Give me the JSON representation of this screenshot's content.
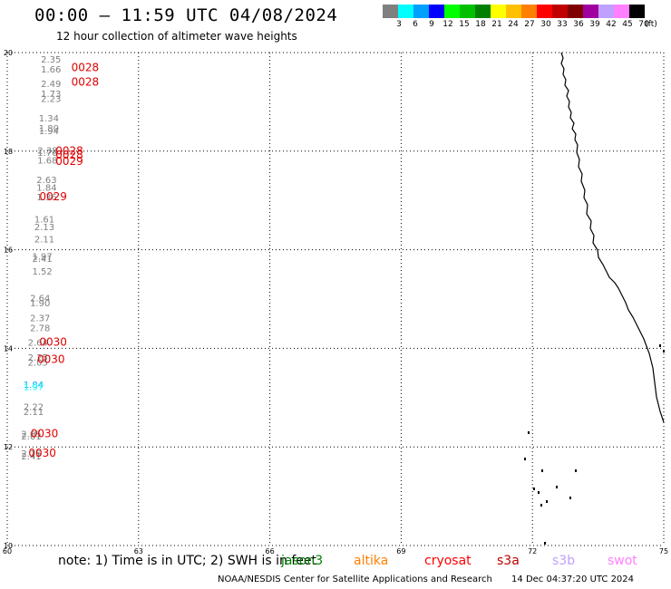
{
  "header": {
    "title": "00:00 – 11:59 UTC 04/08/2024",
    "subtitle": "12 hour collection of altimeter wave heights"
  },
  "legend": {
    "unit": "(ft)",
    "bins": [
      {
        "label": "3",
        "color": "#808080"
      },
      {
        "label": "6",
        "color": "#00ffff"
      },
      {
        "label": "9",
        "color": "#00a0ff"
      },
      {
        "label": "12",
        "color": "#0000ff"
      },
      {
        "label": "15",
        "color": "#00ff00"
      },
      {
        "label": "18",
        "color": "#00c000"
      },
      {
        "label": "21",
        "color": "#008000"
      },
      {
        "label": "24",
        "color": "#ffff00"
      },
      {
        "label": "27",
        "color": "#ffc000"
      },
      {
        "label": "30",
        "color": "#ff8000"
      },
      {
        "label": "33",
        "color": "#ff0000"
      },
      {
        "label": "36",
        "color": "#c00000"
      },
      {
        "label": "39",
        "color": "#800000"
      },
      {
        "label": "42",
        "color": "#a000a0"
      },
      {
        "label": "45",
        "color": "#c0a0ff"
      },
      {
        "label": "70",
        "color": "#ff80ff"
      },
      {
        "label": "",
        "color": "#000000"
      }
    ]
  },
  "map": {
    "lon_ticks": [
      "60",
      "63",
      "66",
      "69",
      "72",
      "75"
    ],
    "lat_ticks": [
      "20",
      "18",
      "16",
      "14",
      "12",
      "10"
    ],
    "lon_range": [
      60,
      75
    ],
    "lat_range": [
      10,
      20
    ],
    "grid": "dotted",
    "wave_heights": [
      {
        "lat": 19.8,
        "lon": 61.0,
        "value": "2.35",
        "color": "#808080"
      },
      {
        "lat": 19.6,
        "lon": 61.0,
        "value": "1.66",
        "color": "#808080"
      },
      {
        "lat": 19.3,
        "lon": 61.0,
        "value": "2.49",
        "color": "#808080"
      },
      {
        "lat": 19.1,
        "lon": 61.0,
        "value": "1.73",
        "color": "#808080"
      },
      {
        "lat": 19.0,
        "lon": 61.0,
        "value": "2.23",
        "color": "#808080"
      },
      {
        "lat": 18.6,
        "lon": 60.95,
        "value": "1.34",
        "color": "#808080"
      },
      {
        "lat": 18.4,
        "lon": 60.95,
        "value": "1.80",
        "color": "#808080"
      },
      {
        "lat": 18.35,
        "lon": 60.95,
        "value": "1.94",
        "color": "#808080"
      },
      {
        "lat": 17.95,
        "lon": 60.92,
        "value": "2.38",
        "color": "#808080"
      },
      {
        "lat": 17.9,
        "lon": 60.92,
        "value": "1.76",
        "color": "#808080"
      },
      {
        "lat": 17.75,
        "lon": 60.92,
        "value": "1.68",
        "color": "#808080"
      },
      {
        "lat": 17.35,
        "lon": 60.9,
        "value": "2.63",
        "color": "#808080"
      },
      {
        "lat": 17.2,
        "lon": 60.9,
        "value": "1.84",
        "color": "#808080"
      },
      {
        "lat": 17.0,
        "lon": 60.9,
        "value": "1.36",
        "color": "#808080"
      },
      {
        "lat": 16.55,
        "lon": 60.85,
        "value": "1.61",
        "color": "#808080"
      },
      {
        "lat": 16.4,
        "lon": 60.85,
        "value": "2.13",
        "color": "#808080"
      },
      {
        "lat": 16.15,
        "lon": 60.85,
        "value": "2.11",
        "color": "#808080"
      },
      {
        "lat": 15.8,
        "lon": 60.8,
        "value": "1.97",
        "color": "#808080"
      },
      {
        "lat": 15.75,
        "lon": 60.8,
        "value": "2.41",
        "color": "#808080"
      },
      {
        "lat": 15.5,
        "lon": 60.8,
        "value": "1.52",
        "color": "#808080"
      },
      {
        "lat": 14.95,
        "lon": 60.75,
        "value": "2.64",
        "color": "#808080"
      },
      {
        "lat": 14.85,
        "lon": 60.75,
        "value": "1.90",
        "color": "#808080"
      },
      {
        "lat": 14.55,
        "lon": 60.75,
        "value": "2.37",
        "color": "#808080"
      },
      {
        "lat": 14.35,
        "lon": 60.75,
        "value": "2.78",
        "color": "#808080"
      },
      {
        "lat": 14.05,
        "lon": 60.7,
        "value": "2.64",
        "color": "#808080"
      },
      {
        "lat": 13.75,
        "lon": 60.7,
        "value": "2.25",
        "color": "#808080"
      },
      {
        "lat": 13.65,
        "lon": 60.7,
        "value": "2.05",
        "color": "#808080"
      },
      {
        "lat": 13.2,
        "lon": 60.6,
        "value": "1.84",
        "color": "#00a0ff"
      },
      {
        "lat": 13.15,
        "lon": 60.6,
        "value": "1.97",
        "color": "#00ffff"
      },
      {
        "lat": 12.75,
        "lon": 60.6,
        "value": "2.22",
        "color": "#808080"
      },
      {
        "lat": 12.65,
        "lon": 60.6,
        "value": "2.11",
        "color": "#808080"
      },
      {
        "lat": 12.2,
        "lon": 60.55,
        "value": "2.05",
        "color": "#808080"
      },
      {
        "lat": 12.15,
        "lon": 60.55,
        "value": "2.01",
        "color": "#808080"
      },
      {
        "lat": 11.8,
        "lon": 60.55,
        "value": "2.15",
        "color": "#808080"
      },
      {
        "lat": 11.75,
        "lon": 60.55,
        "value": "2.41",
        "color": "#808080"
      }
    ],
    "pass_times": [
      {
        "lat": 19.62,
        "lon": 61.78,
        "label": "0028",
        "color": "#e00000"
      },
      {
        "lat": 19.33,
        "lon": 61.78,
        "label": "0028",
        "color": "#e00000"
      },
      {
        "lat": 17.93,
        "lon": 61.42,
        "label": "0028",
        "color": "#e00000"
      },
      {
        "lat": 17.85,
        "lon": 61.42,
        "label": "0028",
        "color": "#e00000"
      },
      {
        "lat": 17.72,
        "lon": 61.42,
        "label": "0029",
        "color": "#e00000"
      },
      {
        "lat": 17.0,
        "lon": 61.05,
        "label": "0029",
        "color": "#e00000"
      },
      {
        "lat": 14.05,
        "lon": 61.05,
        "label": "0030",
        "color": "#e00000"
      },
      {
        "lat": 13.7,
        "lon": 61.0,
        "label": "0030",
        "color": "#e00000"
      },
      {
        "lat": 12.2,
        "lon": 60.85,
        "label": "0030",
        "color": "#e00000"
      },
      {
        "lat": 11.8,
        "lon": 60.8,
        "label": "0030",
        "color": "#e00000"
      }
    ]
  },
  "note": {
    "text": "note: 1) Time is in UTC; 2) SWH is in feet",
    "satellites": [
      {
        "name": "jason3",
        "color": "#008000"
      },
      {
        "name": "altika",
        "color": "#ff8000"
      },
      {
        "name": "cryosat",
        "color": "#ff0000"
      },
      {
        "name": "s3a",
        "color": "#c00000"
      },
      {
        "name": "s3b",
        "color": "#c0a0ff"
      },
      {
        "name": "swot",
        "color": "#ff80ff"
      }
    ]
  },
  "footer": {
    "credit": "NOAA/NESDIS Center for Satellite Applications and Research",
    "timestamp": "14 Dec 04:37:20 UTC 2024"
  }
}
